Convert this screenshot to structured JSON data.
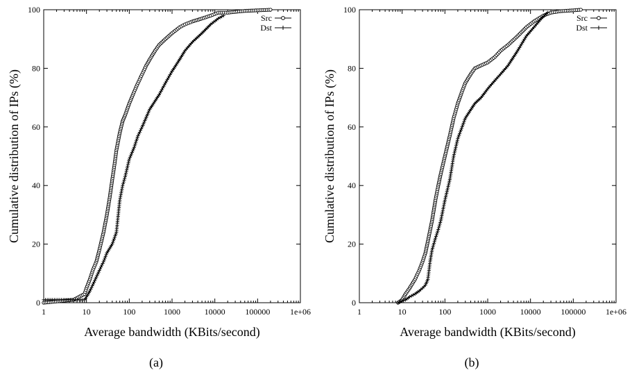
{
  "chart_data": [
    {
      "type": "line",
      "panel_label": "(a)",
      "xlabel": "Average bandwidth (KBits/second)",
      "ylabel": "Cumulative distribution of IPs (%)",
      "x_scale": "log",
      "xlim": [
        1,
        1000000
      ],
      "ylim": [
        0,
        100
      ],
      "x_tick_labels": [
        "1",
        "10",
        "100",
        "1000",
        "10000",
        "100000",
        "1e+06"
      ],
      "y_tick_labels": [
        "0",
        "20",
        "40",
        "60",
        "80",
        "100"
      ],
      "legend_position": "top-right",
      "series": [
        {
          "name": "Src",
          "marker": "circle",
          "x": [
            1,
            5,
            9,
            10,
            12,
            14,
            17,
            20,
            25,
            30,
            35,
            40,
            45,
            50,
            60,
            70,
            80,
            100,
            130,
            160,
            200,
            250,
            300,
            400,
            500,
            700,
            1000,
            1500,
            2000,
            3000,
            5000,
            8000,
            12000,
            20000,
            50000,
            100000,
            200000
          ],
          "y": [
            0,
            1,
            3,
            5,
            8,
            11,
            14,
            18,
            24,
            30,
            36,
            42,
            47,
            52,
            58,
            62,
            64,
            68,
            72,
            75,
            78,
            81,
            83,
            86,
            88,
            90,
            92,
            94,
            95,
            96,
            97,
            98,
            99,
            99,
            99.6,
            99.8,
            100
          ]
        },
        {
          "name": "Dst",
          "marker": "plus",
          "x": [
            1,
            9,
            10,
            12,
            15,
            20,
            25,
            30,
            40,
            50,
            60,
            70,
            80,
            100,
            130,
            160,
            200,
            300,
            500,
            700,
            1000,
            1500,
            2000,
            3000,
            5000,
            8000,
            12000,
            16000
          ],
          "y": [
            1,
            1,
            2,
            4,
            7,
            11,
            14,
            17,
            20,
            24,
            35,
            40,
            43,
            49,
            53,
            57,
            60,
            66,
            71,
            75,
            79,
            83,
            86,
            89,
            92,
            95,
            97,
            98
          ]
        }
      ]
    },
    {
      "type": "line",
      "panel_label": "(b)",
      "xlabel": "Average bandwidth (KBits/second)",
      "ylabel": "Cumulative distribution of IPs (%)",
      "x_scale": "log",
      "xlim": [
        1,
        1000000
      ],
      "ylim": [
        0,
        100
      ],
      "x_tick_labels": [
        "1",
        "10",
        "100",
        "1000",
        "10000",
        "100000",
        "1e+06"
      ],
      "y_tick_labels": [
        "0",
        "20",
        "40",
        "60",
        "80",
        "100"
      ],
      "legend_position": "top-right",
      "series": [
        {
          "name": "Src",
          "marker": "circle",
          "x": [
            8,
            10,
            12,
            15,
            20,
            25,
            30,
            35,
            40,
            50,
            60,
            70,
            80,
            100,
            130,
            160,
            200,
            250,
            300,
            400,
            500,
            700,
            1000,
            1500,
            2000,
            3000,
            5000,
            8000,
            12000,
            20000,
            30000,
            50000,
            100000,
            150000
          ],
          "y": [
            0,
            1,
            3,
            5,
            8,
            11,
            14,
            17,
            21,
            28,
            35,
            40,
            44,
            50,
            57,
            63,
            68,
            72,
            75,
            78,
            80,
            81,
            82,
            84,
            86,
            88,
            91,
            94,
            96,
            98,
            99,
            99.5,
            99.8,
            100
          ]
        },
        {
          "name": "Dst",
          "marker": "plus",
          "x": [
            8,
            12,
            15,
            20,
            25,
            30,
            35,
            40,
            45,
            50,
            60,
            70,
            80,
            100,
            130,
            160,
            200,
            300,
            500,
            700,
            1000,
            1500,
            2000,
            3000,
            5000,
            8000,
            12000,
            18000,
            25000
          ],
          "y": [
            0,
            1,
            2,
            3,
            4,
            5,
            6,
            8,
            14,
            18,
            22,
            25,
            28,
            35,
            42,
            50,
            56,
            63,
            68,
            70,
            73,
            76,
            78,
            81,
            86,
            91,
            94,
            97,
            99
          ]
        }
      ]
    }
  ]
}
